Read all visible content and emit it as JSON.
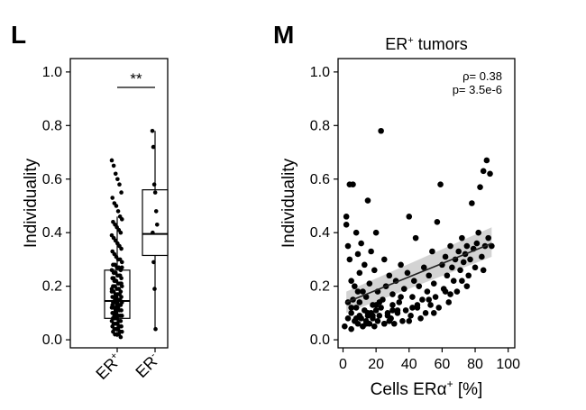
{
  "panels": {
    "left_letter": "L",
    "right_letter": "M"
  },
  "chart_data": [
    {
      "type": "box",
      "title": "",
      "ylabel": "Individuality",
      "ylim": [
        0,
        1.05
      ],
      "yticks": [
        "0.0",
        "0.2",
        "0.4",
        "0.6",
        "0.8",
        "1.0"
      ],
      "categories": [
        "ER⁺",
        "ER⁻"
      ],
      "category_labels": [
        {
          "base": "ER",
          "sup": "+"
        },
        {
          "base": "ER",
          "sup": "-"
        }
      ],
      "significance": "**",
      "boxes": [
        {
          "name": "ER+",
          "min": 0.01,
          "q1": 0.08,
          "median": 0.145,
          "q3": 0.26,
          "max": 0.46
        },
        {
          "name": "ER-",
          "min": 0.04,
          "q1": 0.315,
          "median": 0.395,
          "q3": 0.56,
          "max": 0.78
        }
      ],
      "points": [
        [
          0.67,
          0.65,
          0.62,
          0.6,
          0.58,
          0.55,
          0.53,
          0.51,
          0.5,
          0.48,
          0.46,
          0.45,
          0.44,
          0.43,
          0.42,
          0.41,
          0.4,
          0.39,
          0.38,
          0.37,
          0.36,
          0.35,
          0.34,
          0.33,
          0.32,
          0.31,
          0.3,
          0.3,
          0.29,
          0.28,
          0.28,
          0.27,
          0.27,
          0.26,
          0.26,
          0.25,
          0.25,
          0.24,
          0.24,
          0.23,
          0.23,
          0.22,
          0.22,
          0.21,
          0.21,
          0.2,
          0.2,
          0.2,
          0.19,
          0.19,
          0.18,
          0.18,
          0.18,
          0.17,
          0.17,
          0.17,
          0.16,
          0.16,
          0.16,
          0.15,
          0.15,
          0.15,
          0.14,
          0.14,
          0.14,
          0.13,
          0.13,
          0.13,
          0.12,
          0.12,
          0.12,
          0.11,
          0.11,
          0.11,
          0.1,
          0.1,
          0.1,
          0.09,
          0.09,
          0.09,
          0.08,
          0.08,
          0.08,
          0.07,
          0.07,
          0.07,
          0.06,
          0.06,
          0.06,
          0.05,
          0.05,
          0.05,
          0.04,
          0.04,
          0.04,
          0.03,
          0.03,
          0.03,
          0.02,
          0.02,
          0.02,
          0.01,
          0.19,
          0.23,
          0.11,
          0.14,
          0.17,
          0.21,
          0.13,
          0.09,
          0.16,
          0.12,
          0.24,
          0.27,
          0.08,
          0.15
        ],
        [
          0.78,
          0.72,
          0.58,
          0.55,
          0.48,
          0.43,
          0.4,
          0.29,
          0.19,
          0.04
        ]
      ]
    },
    {
      "type": "scatter",
      "title": "ER⁺ tumors",
      "title_parts": {
        "base": "ER",
        "sup": "+",
        "rest": " tumors"
      },
      "xlabel": "Cells ERα⁺ [%]",
      "xlabel_parts": {
        "base": "Cells ERα",
        "sup": "+",
        "rest": " [%]"
      },
      "ylabel": "Individuality",
      "xlim": [
        -3,
        104
      ],
      "ylim": [
        -0.03,
        1.05
      ],
      "xticks": [
        "0",
        "20",
        "40",
        "60",
        "80",
        "100"
      ],
      "yticks": [
        "0.0",
        "0.2",
        "0.4",
        "0.6",
        "0.8",
        "1.0"
      ],
      "annotations": [
        "ρ= 0.38",
        "p= 3.5e-6"
      ],
      "regression": {
        "x": [
          2,
          90
        ],
        "y": [
          0.14,
          0.36
        ],
        "ci_low_start": 0.1,
        "ci_high_start": 0.18,
        "ci_low_end": 0.31,
        "ci_high_end": 0.42
      },
      "x": [
        1,
        2,
        2,
        3,
        3,
        4,
        4,
        5,
        5,
        5,
        6,
        6,
        7,
        7,
        8,
        8,
        9,
        9,
        10,
        10,
        10,
        11,
        11,
        12,
        12,
        13,
        13,
        14,
        14,
        15,
        15,
        16,
        16,
        17,
        17,
        18,
        18,
        19,
        19,
        20,
        20,
        21,
        21,
        22,
        23,
        23,
        24,
        25,
        25,
        26,
        27,
        28,
        29,
        30,
        30,
        31,
        32,
        33,
        34,
        35,
        36,
        37,
        38,
        39,
        40,
        41,
        42,
        43,
        44,
        45,
        46,
        47,
        48,
        49,
        50,
        51,
        52,
        53,
        54,
        55,
        56,
        57,
        58,
        59,
        60,
        61,
        62,
        63,
        64,
        65,
        66,
        67,
        68,
        69,
        70,
        71,
        72,
        73,
        74,
        75,
        76,
        77,
        78,
        79,
        80,
        81,
        82,
        83,
        84,
        85,
        86,
        87,
        88,
        89,
        90,
        5,
        8,
        12,
        18,
        22,
        25,
        30,
        35,
        40,
        45,
        55,
        65,
        75,
        85,
        15,
        28,
        42,
        52,
        62,
        72,
        3,
        9,
        14,
        20,
        27,
        33
      ],
      "y": [
        0.05,
        0.46,
        0.43,
        0.35,
        0.08,
        0.3,
        0.58,
        0.1,
        0.04,
        0.22,
        0.15,
        0.58,
        0.07,
        0.2,
        0.12,
        0.4,
        0.06,
        0.32,
        0.09,
        0.25,
        0.14,
        0.08,
        0.36,
        0.05,
        0.18,
        0.11,
        0.28,
        0.07,
        0.16,
        0.09,
        0.52,
        0.06,
        0.21,
        0.1,
        0.33,
        0.08,
        0.13,
        0.05,
        0.26,
        0.11,
        0.4,
        0.07,
        0.18,
        0.09,
        0.12,
        0.78,
        0.15,
        0.06,
        0.3,
        0.2,
        0.1,
        0.24,
        0.08,
        0.13,
        0.17,
        0.06,
        0.22,
        0.1,
        0.14,
        0.28,
        0.07,
        0.19,
        0.11,
        0.25,
        0.46,
        0.09,
        0.16,
        0.22,
        0.38,
        0.12,
        0.2,
        0.08,
        0.15,
        0.27,
        0.1,
        0.18,
        0.24,
        0.13,
        0.33,
        0.21,
        0.16,
        0.44,
        0.12,
        0.58,
        0.28,
        0.19,
        0.31,
        0.24,
        0.14,
        0.35,
        0.27,
        0.22,
        0.3,
        0.18,
        0.33,
        0.26,
        0.38,
        0.29,
        0.32,
        0.35,
        0.24,
        0.3,
        0.51,
        0.34,
        0.27,
        0.36,
        0.4,
        0.57,
        0.31,
        0.63,
        0.35,
        0.67,
        0.38,
        0.62,
        0.35,
        0.12,
        0.08,
        0.05,
        0.09,
        0.14,
        0.06,
        0.11,
        0.16,
        0.07,
        0.13,
        0.1,
        0.17,
        0.2,
        0.26,
        0.1,
        0.07,
        0.12,
        0.15,
        0.18,
        0.22,
        0.14,
        0.18,
        0.06,
        0.13,
        0.09,
        0.11
      ]
    }
  ]
}
